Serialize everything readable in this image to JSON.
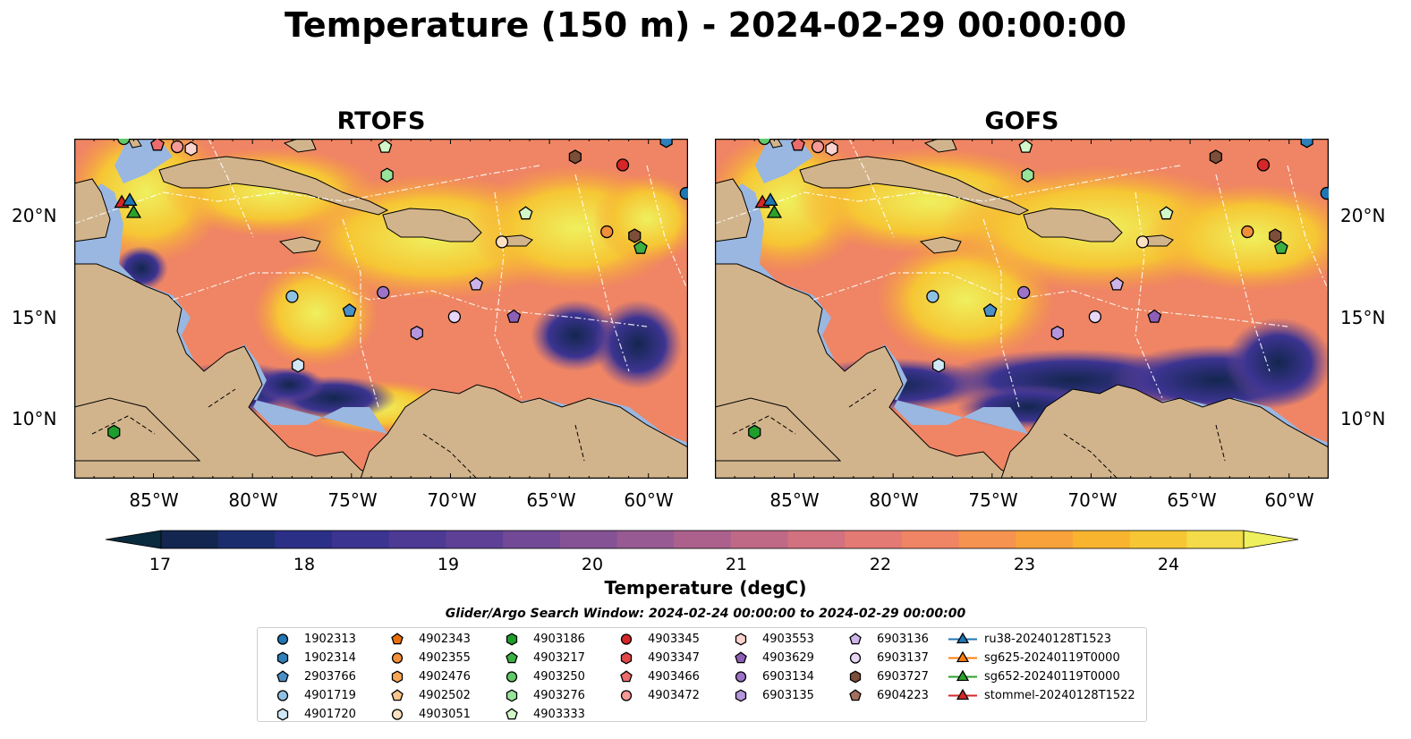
{
  "title": "Temperature (150 m) - 2024-02-29 00:00:00",
  "panels": [
    {
      "title": "RTOFS"
    },
    {
      "title": "GOFS"
    }
  ],
  "lat_ticks": [
    "20°N",
    "15°N",
    "10°N"
  ],
  "lon_ticks": [
    "85°W",
    "80°W",
    "75°W",
    "70°W",
    "65°W",
    "60°W"
  ],
  "colorbar": {
    "label": "Temperature (degC)",
    "ticks": [
      "17",
      "18",
      "19",
      "20",
      "21",
      "22",
      "23",
      "24"
    ],
    "min": 16.5,
    "max": 24.5,
    "colors": [
      "#0a2a3e",
      "#13264f",
      "#1c2d6e",
      "#2c2f86",
      "#3c3491",
      "#4d3a94",
      "#5e4196",
      "#714996",
      "#855295",
      "#985a92",
      "#ac618d",
      "#c06987",
      "#d2717f",
      "#e37a74",
      "#ef8564",
      "#f69350",
      "#f9a23c",
      "#f9b42f",
      "#f6c634",
      "#f3db4a",
      "#eff05e"
    ]
  },
  "search_window": "Glider/Argo Search Window: 2024-02-24 00:00:00 to 2024-02-29 00:00:00",
  "legend": [
    {
      "label": "1902313",
      "marker": "circle",
      "color": "#1f77b4"
    },
    {
      "label": "1902314",
      "marker": "hexagon",
      "color": "#2f7fb8"
    },
    {
      "label": "2903766",
      "marker": "pentagon",
      "color": "#4a90c8"
    },
    {
      "label": "4901719",
      "marker": "circle",
      "color": "#8fc1e3"
    },
    {
      "label": "4901720",
      "marker": "hexagon",
      "color": "#d0e8f6"
    },
    {
      "label": "4902343",
      "marker": "pentagon",
      "color": "#e86f0a"
    },
    {
      "label": "4902355",
      "marker": "circle",
      "color": "#f28f3b"
    },
    {
      "label": "4902476",
      "marker": "hexagon",
      "color": "#f7a654"
    },
    {
      "label": "4902502",
      "marker": "pentagon",
      "color": "#fbc48c"
    },
    {
      "label": "4903051",
      "marker": "circle",
      "color": "#fde1c3"
    },
    {
      "label": "4903186",
      "marker": "hexagon",
      "color": "#1f9e2c"
    },
    {
      "label": "4903217",
      "marker": "pentagon",
      "color": "#3cb043"
    },
    {
      "label": "4903250",
      "marker": "circle",
      "color": "#62c96a"
    },
    {
      "label": "4903276",
      "marker": "hexagon",
      "color": "#98e39a"
    },
    {
      "label": "4903333",
      "marker": "pentagon",
      "color": "#d2f7c9"
    },
    {
      "label": "4903345",
      "marker": "circle",
      "color": "#d62728"
    },
    {
      "label": "4903347",
      "marker": "hexagon",
      "color": "#e04848"
    },
    {
      "label": "4903466",
      "marker": "pentagon",
      "color": "#ec6c6c"
    },
    {
      "label": "4903472",
      "marker": "circle",
      "color": "#f59a96"
    },
    {
      "label": "4903553",
      "marker": "hexagon",
      "color": "#fbd3cf"
    },
    {
      "label": "4903629",
      "marker": "pentagon",
      "color": "#8e5fb8"
    },
    {
      "label": "6903134",
      "marker": "circle",
      "color": "#9d72c9"
    },
    {
      "label": "6903135",
      "marker": "hexagon",
      "color": "#b595dc"
    },
    {
      "label": "6903136",
      "marker": "pentagon",
      "color": "#cdb5ea"
    },
    {
      "label": "6903137",
      "marker": "circle",
      "color": "#e8d6f6"
    },
    {
      "label": "6903727",
      "marker": "hexagon",
      "color": "#7d4e3a"
    },
    {
      "label": "6904223",
      "marker": "pentagon",
      "color": "#a56f5f"
    },
    {
      "label": "ru38-20240128T1523",
      "marker": "triangle-line",
      "color": "#1f77b4"
    },
    {
      "label": "sg625-20240119T0000",
      "marker": "triangle-line",
      "color": "#ff7f0e"
    },
    {
      "label": "sg652-20240119T0000",
      "marker": "triangle-line",
      "color": "#2ca02c"
    },
    {
      "label": "stommel-20240128T1522",
      "marker": "triangle-line",
      "color": "#d62728"
    }
  ],
  "map_colors": {
    "land": "#d2b48c",
    "shelf": "#99b7e0",
    "deep_pacific": "#07283b"
  }
}
